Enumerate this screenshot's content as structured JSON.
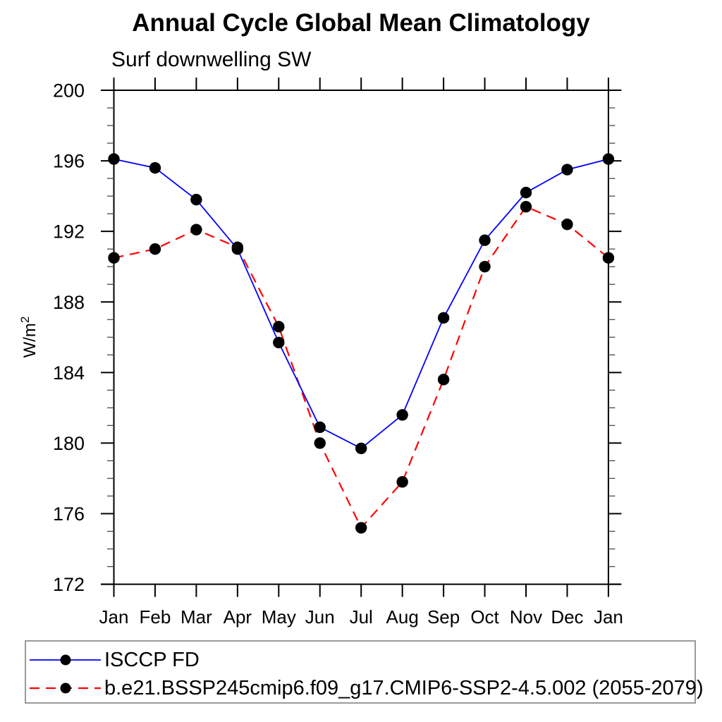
{
  "title": "Annual Cycle Global Mean Climatology",
  "subtitle": "Surf downwelling SW",
  "chart_data": {
    "type": "line",
    "title": "Annual Cycle Global Mean Climatology",
    "subtitle": "Surf downwelling SW",
    "xlabel": "",
    "ylabel": "W/m²",
    "ylabel_base": "W/m",
    "ylabel_exponent": "2",
    "ylim": [
      172,
      200
    ],
    "ytick_major_interval": 4,
    "ytick_minor_interval": 1,
    "ytick_labels": [
      "172",
      "176",
      "180",
      "184",
      "188",
      "192",
      "196",
      "200"
    ],
    "categories": [
      "Jan",
      "Feb",
      "Mar",
      "Apr",
      "May",
      "Jun",
      "Jul",
      "Aug",
      "Sep",
      "Oct",
      "Nov",
      "Dec",
      "Jan"
    ],
    "grid": false,
    "legend_position": "bottom-left",
    "marker_color": "#000000",
    "axis_color": "#000000",
    "series": [
      {
        "name": "ISCCP FD",
        "color": "#0000ff",
        "line_style": "solid",
        "marker": "filled-circle",
        "values": [
          196.1,
          195.6,
          193.8,
          191.0,
          185.7,
          180.9,
          179.7,
          181.6,
          187.1,
          191.5,
          194.2,
          195.5,
          196.1
        ]
      },
      {
        "name": "b.e21.BSSP245cmip6.f09_g17.CMIP6-SSP2-4.5.002 (2055-2079)",
        "color": "#ff0000",
        "line_style": "dashed",
        "marker": "filled-circle",
        "values": [
          190.5,
          191.0,
          192.1,
          191.1,
          186.6,
          180.0,
          175.2,
          177.8,
          183.6,
          190.0,
          193.4,
          192.4,
          190.5
        ]
      }
    ]
  }
}
